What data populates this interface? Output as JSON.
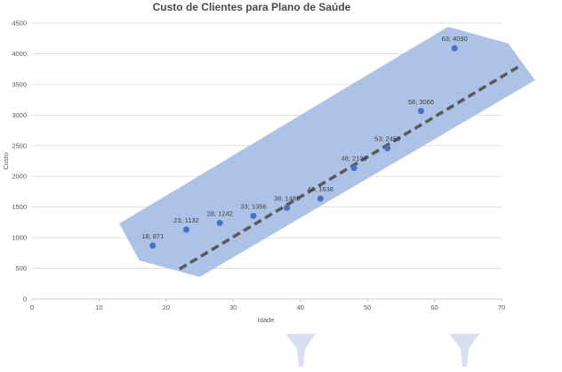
{
  "chart_data": {
    "type": "scatter",
    "title": "Custo de Clientes para Plano de Saúde",
    "xlabel": "Idade",
    "ylabel": "Custo",
    "xlim": [
      0,
      70
    ],
    "ylim": [
      0,
      4500
    ],
    "x_ticks": [
      0,
      10,
      20,
      30,
      40,
      50,
      60,
      70
    ],
    "y_ticks": [
      0,
      500,
      1000,
      1500,
      2000,
      2500,
      3000,
      3500,
      4000,
      4500
    ],
    "grid": "horizontal",
    "points": [
      {
        "x": 18,
        "y": 871,
        "label": "18; 871"
      },
      {
        "x": 23,
        "y": 1132,
        "label": "23; 1132"
      },
      {
        "x": 28,
        "y": 1242,
        "label": "28; 1242"
      },
      {
        "x": 33,
        "y": 1356,
        "label": "33; 1356"
      },
      {
        "x": 38,
        "y": 1488,
        "label": "38; 1488"
      },
      {
        "x": 43,
        "y": 1638,
        "label": "43; 1638"
      },
      {
        "x": 48,
        "y": 2138,
        "label": "48; 2138"
      },
      {
        "x": 53,
        "y": 2459,
        "label": "53; 2459"
      },
      {
        "x": 58,
        "y": 3066,
        "label": "58; 3066"
      },
      {
        "x": 63,
        "y": 4090,
        "label": "63; 4090"
      }
    ],
    "trendline": {
      "style": "dashed",
      "color": "#595959",
      "from": {
        "x": 22,
        "y": 490
      },
      "to": {
        "x": 73,
        "y": 3820
      }
    },
    "band": {
      "color": "#a9bfe6",
      "polygon": [
        {
          "x": 13,
          "y": 1230
        },
        {
          "x": 62,
          "y": 4440
        },
        {
          "x": 71,
          "y": 4170
        },
        {
          "x": 75,
          "y": 3570
        },
        {
          "x": 25,
          "y": 360
        },
        {
          "x": 16,
          "y": 630
        }
      ]
    },
    "colors": {
      "point": "#4472c4",
      "grid": "#d9d9d9",
      "axis": "#bfbfbf"
    }
  }
}
